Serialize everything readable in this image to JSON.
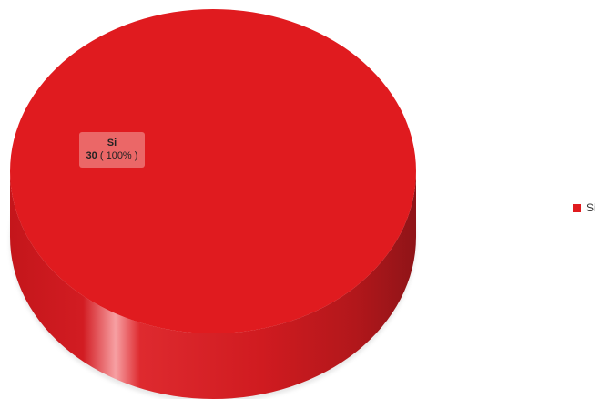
{
  "chart_data": {
    "type": "pie",
    "style": "3d",
    "slices": [
      {
        "label": "Si",
        "value": 30,
        "percent": "100%",
        "color": "#e01b1f"
      }
    ],
    "legend": {
      "position": "right",
      "entries": [
        "Si"
      ]
    },
    "data_label": {
      "name": "Si",
      "count": "30",
      "percent": "( 100% )"
    }
  }
}
